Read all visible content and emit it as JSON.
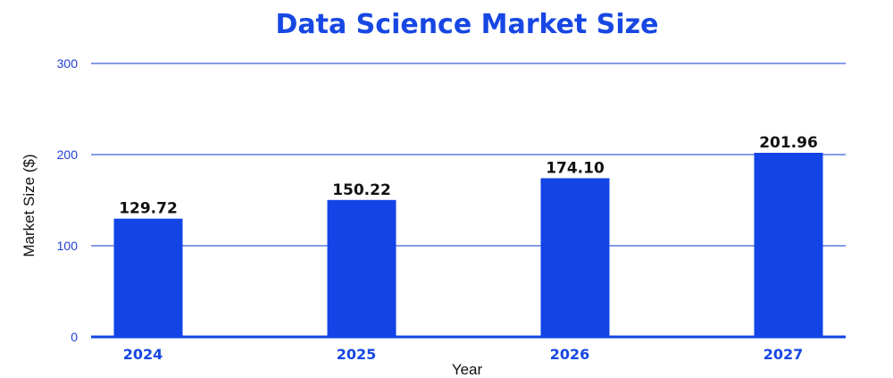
{
  "chart_data": {
    "type": "bar",
    "title": "Data Science Market Size",
    "xlabel": "Year",
    "ylabel": "Market Size ($)",
    "categories": [
      "2024",
      "2025",
      "2026",
      "2027"
    ],
    "values": [
      129.72,
      150.22,
      174.1,
      201.96
    ],
    "value_labels": [
      "129.72",
      "150.22",
      "174.10",
      "201.96"
    ],
    "ylim": [
      0,
      300
    ],
    "yticks": [
      0,
      100,
      200,
      300
    ],
    "grid": true,
    "legend": "none",
    "colors": {
      "bar": "#1244e6",
      "grid": "#3b5fd9",
      "title": "#1747e3",
      "axis_text": "#1f3fcf"
    }
  }
}
